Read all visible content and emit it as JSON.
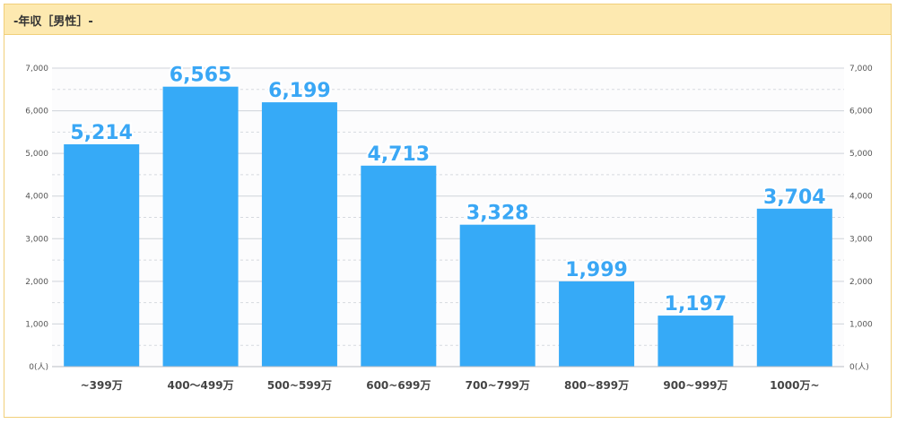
{
  "panel": {
    "title": "-年収［男性］-"
  },
  "chart_data": {
    "type": "bar",
    "categories": [
      "~399万",
      "400～499万",
      "500~599万",
      "600~699万",
      "700~799万",
      "800~899万",
      "900~999万",
      "1000万~"
    ],
    "values": [
      5214,
      6565,
      6199,
      4713,
      3328,
      1999,
      1197,
      3704
    ],
    "value_labels": [
      "5,214",
      "6,565",
      "6,199",
      "4,713",
      "3,328",
      "1,999",
      "1,197",
      "3,704"
    ],
    "ylim": [
      0,
      7000
    ],
    "yticks": [
      0,
      1000,
      2000,
      3000,
      4000,
      5000,
      6000,
      7000
    ],
    "ytick_labels": [
      "0(人)",
      "1,000",
      "2,000",
      "3,000",
      "4,000",
      "5,000",
      "6,000",
      "7,000"
    ],
    "grid": true,
    "bar_color": "#36aaf7",
    "label_color": "#3aa7f5"
  }
}
